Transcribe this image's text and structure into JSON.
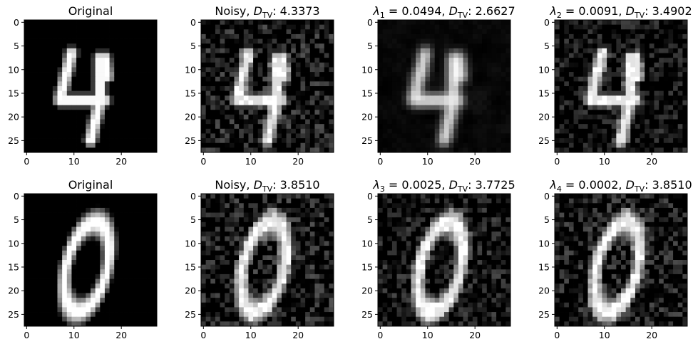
{
  "figure": {
    "x_ticks": [
      "0",
      "10",
      "20"
    ],
    "y_ticks": [
      "0",
      "5",
      "10",
      "15",
      "20",
      "25"
    ],
    "rows": [
      {
        "digit": "4",
        "panels": [
          {
            "kind": "original",
            "title_text": "Original"
          },
          {
            "kind": "noisy",
            "title_prefix": "Noisy, ",
            "title_metric": "D",
            "title_sub": "TV",
            "title_value": ": 4.3373",
            "noise": 0.32,
            "seed": 11
          },
          {
            "kind": "denoised",
            "title_lambda": "λ",
            "title_lambda_index": "1",
            "title_lambda_value": " = 0.0494, ",
            "title_metric": "D",
            "title_sub": "TV",
            "title_value": ": 2.6627",
            "noise": 0.1,
            "seed": 23,
            "smooth": true
          },
          {
            "kind": "denoised",
            "title_lambda": "λ",
            "title_lambda_index": "2",
            "title_lambda_value": " = 0.0091, ",
            "title_metric": "D",
            "title_sub": "TV",
            "title_value": ": 3.4902",
            "noise": 0.25,
            "seed": 37
          }
        ]
      },
      {
        "digit": "0",
        "panels": [
          {
            "kind": "original",
            "title_text": "Original"
          },
          {
            "kind": "noisy",
            "title_prefix": "Noisy, ",
            "title_metric": "D",
            "title_sub": "TV",
            "title_value": ": 3.8510",
            "noise": 0.32,
            "seed": 41
          },
          {
            "kind": "denoised",
            "title_lambda": "λ",
            "title_lambda_index": "3",
            "title_lambda_value": " = 0.0025, ",
            "title_metric": "D",
            "title_sub": "TV",
            "title_value": ": 3.7725",
            "noise": 0.28,
            "seed": 53
          },
          {
            "kind": "denoised",
            "title_lambda": "λ",
            "title_lambda_index": "4",
            "title_lambda_value": " = 0.0002, ",
            "title_metric": "D",
            "title_sub": "TV",
            "title_value": ": 3.8510",
            "noise": 0.31,
            "seed": 67
          }
        ]
      }
    ],
    "colors": {
      "background": "#ffffff",
      "axis": "#000000",
      "ink": "#000000"
    }
  }
}
